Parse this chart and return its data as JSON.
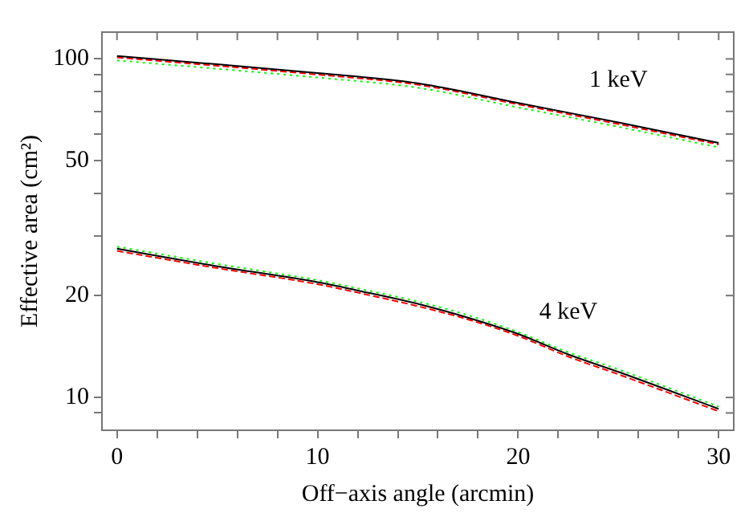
{
  "chart_data": {
    "type": "line",
    "xlabel": "Off−axis angle (arcmin)",
    "ylabel": "Effective area (cm²)",
    "log": "y",
    "grid": false,
    "legend": false,
    "marker": "none",
    "xlim": [
      -0.75,
      30.75
    ],
    "ylim": [
      8,
      120
    ],
    "xticks": [
      0,
      {
        "value": 2,
        "label": null
      },
      {
        "value": 4,
        "label": null
      },
      {
        "value": 6,
        "label": null
      },
      {
        "value": 8,
        "label": null
      },
      10,
      {
        "value": 12,
        "label": null
      },
      {
        "value": 14,
        "label": null
      },
      {
        "value": 16,
        "label": null
      },
      {
        "value": 18,
        "label": null
      },
      20,
      {
        "value": 22,
        "label": null
      },
      {
        "value": 24,
        "label": null
      },
      {
        "value": 26,
        "label": null
      },
      {
        "value": 28,
        "label": null
      },
      30
    ],
    "yticks": [
      {
        "value": 9,
        "label": null
      },
      10,
      20,
      {
        "value": 30,
        "label": null
      },
      {
        "value": 40,
        "label": null
      },
      50,
      {
        "value": 60,
        "label": null
      },
      {
        "value": 70,
        "label": null
      },
      {
        "value": 80,
        "label": null
      },
      {
        "value": 90,
        "label": null
      },
      100
    ],
    "annotations": [
      "1 keV",
      "4 keV"
    ],
    "series": [
      {
        "color": "#000000",
        "line_style": "solid",
        "x": [
          0,
          5,
          10,
          15,
          20,
          25,
          30
        ],
        "values": [
          102,
          96.4,
          90.8,
          84.7,
          74.1,
          64.9,
          56.5
        ]
      },
      {
        "color": "#ff0000",
        "line_style": "dashed",
        "x": [
          0,
          5,
          10,
          15,
          20,
          25,
          30
        ],
        "values": [
          101,
          95.4,
          89.9,
          83.9,
          73.4,
          64.2,
          55.9
        ]
      },
      {
        "color": "#00ff00",
        "line_style": "dotted",
        "x": [
          0,
          5,
          10,
          15,
          20,
          25,
          30
        ],
        "values": [
          99,
          93.5,
          88.1,
          82.2,
          71.9,
          63,
          54.8
        ]
      },
      {
        "color": "#000000",
        "line_style": "solid",
        "x": [
          0,
          5,
          10,
          12.5,
          15,
          17.5,
          20,
          22.5,
          25,
          30
        ],
        "values": [
          27.5,
          24.4,
          21.9,
          20.4,
          18.9,
          17.2,
          15.4,
          13.4,
          11.9,
          9.25
        ]
      },
      {
        "color": "#ff0000",
        "line_style": "dashed",
        "x": [
          0,
          5,
          10,
          12.5,
          15,
          17.5,
          20,
          22.5,
          25,
          30
        ],
        "values": [
          27.1,
          24.1,
          21.6,
          20.1,
          18.6,
          17,
          15.2,
          13.2,
          11.7,
          9.1
        ]
      },
      {
        "color": "#00ff00",
        "line_style": "dotted",
        "x": [
          0,
          5,
          10,
          12.5,
          15,
          17.5,
          20,
          22.5,
          25,
          30
        ],
        "values": [
          27.9,
          24.8,
          22.2,
          20.7,
          19.2,
          17.5,
          15.6,
          13.6,
          12.1,
          9.4
        ]
      }
    ]
  }
}
